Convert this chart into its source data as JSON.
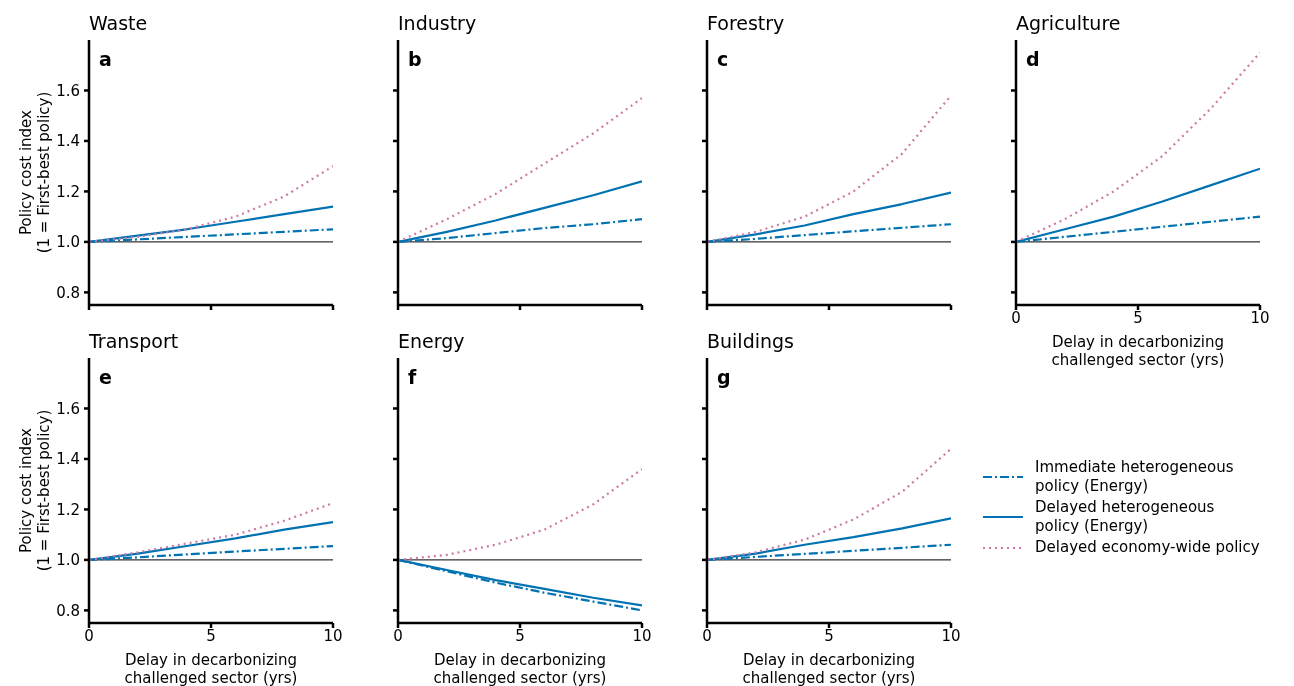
{
  "chart_data": [
    {
      "type": "line",
      "title": "Waste",
      "annotations": [
        "a"
      ],
      "ylabel": "Policy cost index\n(1 = First-best policy)",
      "x": [
        0,
        2,
        4,
        6,
        8,
        10
      ],
      "xlim": [
        0,
        10
      ],
      "xticks": [
        0,
        5,
        10
      ],
      "ylim": [
        0.75,
        1.8
      ],
      "yticks": [
        0.8,
        {
          "value": 1,
          "label": "1.0"
        },
        1.2,
        1.4,
        1.6
      ],
      "tick_labels": "y",
      "ref_lines": [
        {
          "axis": "y",
          "value": 1
        }
      ],
      "series": [
        {
          "color": "#0072b2",
          "line_style": "dashdot",
          "values": [
            1,
            1.01,
            1.02,
            1.03,
            1.04,
            1.05
          ]
        },
        {
          "color": "#0072b2",
          "line_style": "solid",
          "values": [
            1,
            1.025,
            1.05,
            1.08,
            1.11,
            1.14
          ]
        },
        {
          "color": "#cc79a7",
          "line_style": "dotted",
          "values": [
            1,
            1.02,
            1.05,
            1.1,
            1.18,
            1.3
          ]
        }
      ]
    },
    {
      "type": "line",
      "title": "Industry",
      "annotations": [
        "b"
      ],
      "x": [
        0,
        2,
        4,
        6,
        8,
        10
      ],
      "xlim": [
        0,
        10
      ],
      "xticks": [
        0,
        5,
        10
      ],
      "ylim": [
        0.75,
        1.8
      ],
      "yticks": [
        0.8,
        1,
        1.2,
        1.4,
        1.6
      ],
      "tick_labels": false,
      "ref_lines": [
        {
          "axis": "y",
          "value": 1
        }
      ],
      "series": [
        {
          "color": "#0072b2",
          "line_style": "dashdot",
          "values": [
            1,
            1.015,
            1.035,
            1.055,
            1.07,
            1.09
          ]
        },
        {
          "color": "#0072b2",
          "line_style": "solid",
          "values": [
            1,
            1.04,
            1.085,
            1.135,
            1.185,
            1.24
          ]
        },
        {
          "color": "#cc79a7",
          "line_style": "dotted",
          "values": [
            1,
            1.09,
            1.19,
            1.31,
            1.43,
            1.57
          ]
        }
      ]
    },
    {
      "type": "line",
      "title": "Forestry",
      "annotations": [
        "c"
      ],
      "x": [
        0,
        2,
        4,
        6,
        8,
        10
      ],
      "xlim": [
        0,
        10
      ],
      "xticks": [
        0,
        5,
        10
      ],
      "ylim": [
        0.75,
        1.8
      ],
      "yticks": [
        0.8,
        1,
        1.2,
        1.4,
        1.6
      ],
      "tick_labels": false,
      "ref_lines": [
        {
          "axis": "y",
          "value": 1
        }
      ],
      "series": [
        {
          "color": "#0072b2",
          "line_style": "dashdot",
          "values": [
            1,
            1.012,
            1.027,
            1.042,
            1.056,
            1.07
          ]
        },
        {
          "color": "#0072b2",
          "line_style": "solid",
          "values": [
            1,
            1.03,
            1.065,
            1.11,
            1.15,
            1.195
          ]
        },
        {
          "color": "#cc79a7",
          "line_style": "dotted",
          "values": [
            1,
            1.04,
            1.1,
            1.2,
            1.35,
            1.58
          ]
        }
      ]
    },
    {
      "type": "line",
      "title": "Agriculture",
      "annotations": [
        "d"
      ],
      "xlabel": "Delay in decarbonizing\nchallenged sector (yrs)",
      "x": [
        0,
        2,
        4,
        6,
        8,
        10
      ],
      "xlim": [
        0,
        10
      ],
      "xticks": [
        0,
        5,
        10
      ],
      "ylim": [
        0.75,
        1.8
      ],
      "yticks": [
        0.8,
        1,
        1.2,
        1.4,
        1.6
      ],
      "tick_labels": "x",
      "ref_lines": [
        {
          "axis": "y",
          "value": 1
        }
      ],
      "series": [
        {
          "color": "#0072b2",
          "line_style": "dashdot",
          "values": [
            1,
            1.02,
            1.04,
            1.06,
            1.08,
            1.1
          ]
        },
        {
          "color": "#0072b2",
          "line_style": "solid",
          "values": [
            1,
            1.05,
            1.1,
            1.16,
            1.225,
            1.29
          ]
        },
        {
          "color": "#cc79a7",
          "line_style": "dotted",
          "values": [
            1,
            1.09,
            1.2,
            1.34,
            1.53,
            1.75
          ]
        }
      ]
    },
    {
      "type": "line",
      "title": "Transport",
      "annotations": [
        "e"
      ],
      "xlabel": "Delay in decarbonizing\nchallenged sector (yrs)",
      "ylabel": "Policy cost index\n(1 = First-best policy)",
      "x": [
        0,
        2,
        4,
        6,
        8,
        10
      ],
      "xlim": [
        0,
        10
      ],
      "xticks": [
        0,
        5,
        10
      ],
      "ylim": [
        0.75,
        1.8
      ],
      "yticks": [
        0.8,
        {
          "value": 1,
          "label": "1.0"
        },
        1.2,
        1.4,
        1.6
      ],
      "ref_lines": [
        {
          "axis": "y",
          "value": 1
        }
      ],
      "series": [
        {
          "color": "#0072b2",
          "line_style": "dashdot",
          "values": [
            1,
            1.01,
            1.022,
            1.033,
            1.044,
            1.055
          ]
        },
        {
          "color": "#0072b2",
          "line_style": "solid",
          "values": [
            1,
            1.025,
            1.055,
            1.085,
            1.12,
            1.15
          ]
        },
        {
          "color": "#cc79a7",
          "line_style": "dotted",
          "values": [
            1,
            1.03,
            1.065,
            1.1,
            1.155,
            1.225
          ]
        }
      ]
    },
    {
      "type": "line",
      "title": "Energy",
      "annotations": [
        "f"
      ],
      "xlabel": "Delay in decarbonizing\nchallenged sector (yrs)",
      "x": [
        0,
        2,
        4,
        6,
        8,
        10
      ],
      "xlim": [
        0,
        10
      ],
      "xticks": [
        0,
        5,
        10
      ],
      "ylim": [
        0.75,
        1.8
      ],
      "yticks": [
        0.8,
        1,
        1.2,
        1.4,
        1.6
      ],
      "tick_labels": "x",
      "ref_lines": [
        {
          "axis": "y",
          "value": 1
        }
      ],
      "series": [
        {
          "color": "#0072b2",
          "line_style": "dashdot",
          "values": [
            1,
            0.955,
            0.91,
            0.87,
            0.835,
            0.8
          ]
        },
        {
          "color": "#0072b2",
          "line_style": "solid",
          "values": [
            1,
            0.96,
            0.92,
            0.885,
            0.85,
            0.82
          ]
        },
        {
          "color": "#cc79a7",
          "line_style": "dotted",
          "values": [
            1,
            1.02,
            1.06,
            1.12,
            1.22,
            1.36
          ]
        }
      ]
    },
    {
      "type": "line",
      "title": "Buildings",
      "annotations": [
        "g"
      ],
      "xlabel": "Delay in decarbonizing\nchallenged sector (yrs)",
      "x": [
        0,
        2,
        4,
        6,
        8,
        10
      ],
      "xlim": [
        0,
        10
      ],
      "xticks": [
        0,
        5,
        10
      ],
      "ylim": [
        0.75,
        1.8
      ],
      "yticks": [
        0.8,
        1,
        1.2,
        1.4,
        1.6
      ],
      "tick_labels": "x",
      "ref_lines": [
        {
          "axis": "y",
          "value": 1
        }
      ],
      "legend": "right",
      "series": [
        {
          "name": "Immediate heterogeneous\npolicy (Energy)",
          "color": "#0072b2",
          "line_style": "dashdot",
          "values": [
            1,
            1.012,
            1.024,
            1.036,
            1.048,
            1.06
          ]
        },
        {
          "name": "Delayed heterogeneous\npolicy (Energy)",
          "color": "#0072b2",
          "line_style": "solid",
          "values": [
            1,
            1.025,
            1.06,
            1.09,
            1.125,
            1.165
          ]
        },
        {
          "name": "Delayed economy-wide policy",
          "color": "#cc79a7",
          "line_style": "dotted",
          "values": [
            1,
            1.03,
            1.08,
            1.16,
            1.27,
            1.44
          ]
        }
      ]
    }
  ]
}
